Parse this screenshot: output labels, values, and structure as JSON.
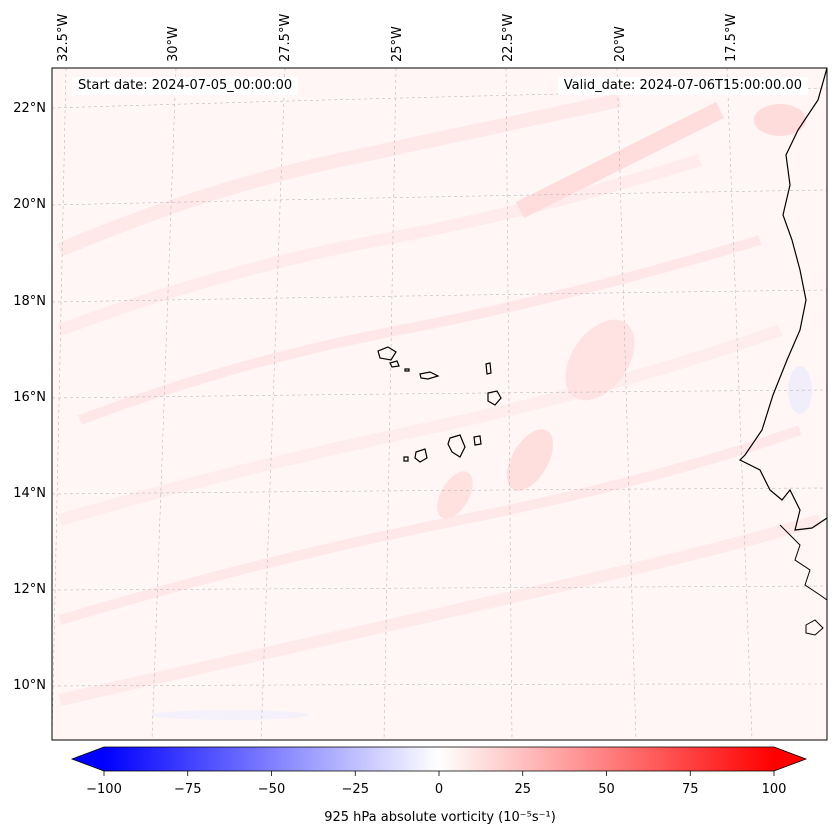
{
  "map": {
    "start_date": "Start date: 2024-07-05_00:00:00",
    "valid_date": "Valid_date: 2024-07-06T15:00:00.00",
    "lon_labels": [
      "32.5°W",
      "30°W",
      "27.5°W",
      "25°W",
      "22.5°W",
      "20°W",
      "17.5°W"
    ],
    "lat_labels": [
      "22°N",
      "20°N",
      "18°N",
      "16°N",
      "14°N",
      "12°N",
      "10°N"
    ],
    "features": [
      "Cape Verde islands",
      "West African coastline"
    ]
  },
  "colorbar": {
    "label": "925 hPa absolute vorticity (10⁻⁵s⁻¹)",
    "ticks": [
      "−100",
      "−75",
      "−50",
      "−25",
      "0",
      "25",
      "50",
      "75",
      "100"
    ],
    "min": -100,
    "max": 100,
    "colors": {
      "low": "#0000ff",
      "mid": "#ffffff",
      "high": "#ff0000"
    }
  }
}
